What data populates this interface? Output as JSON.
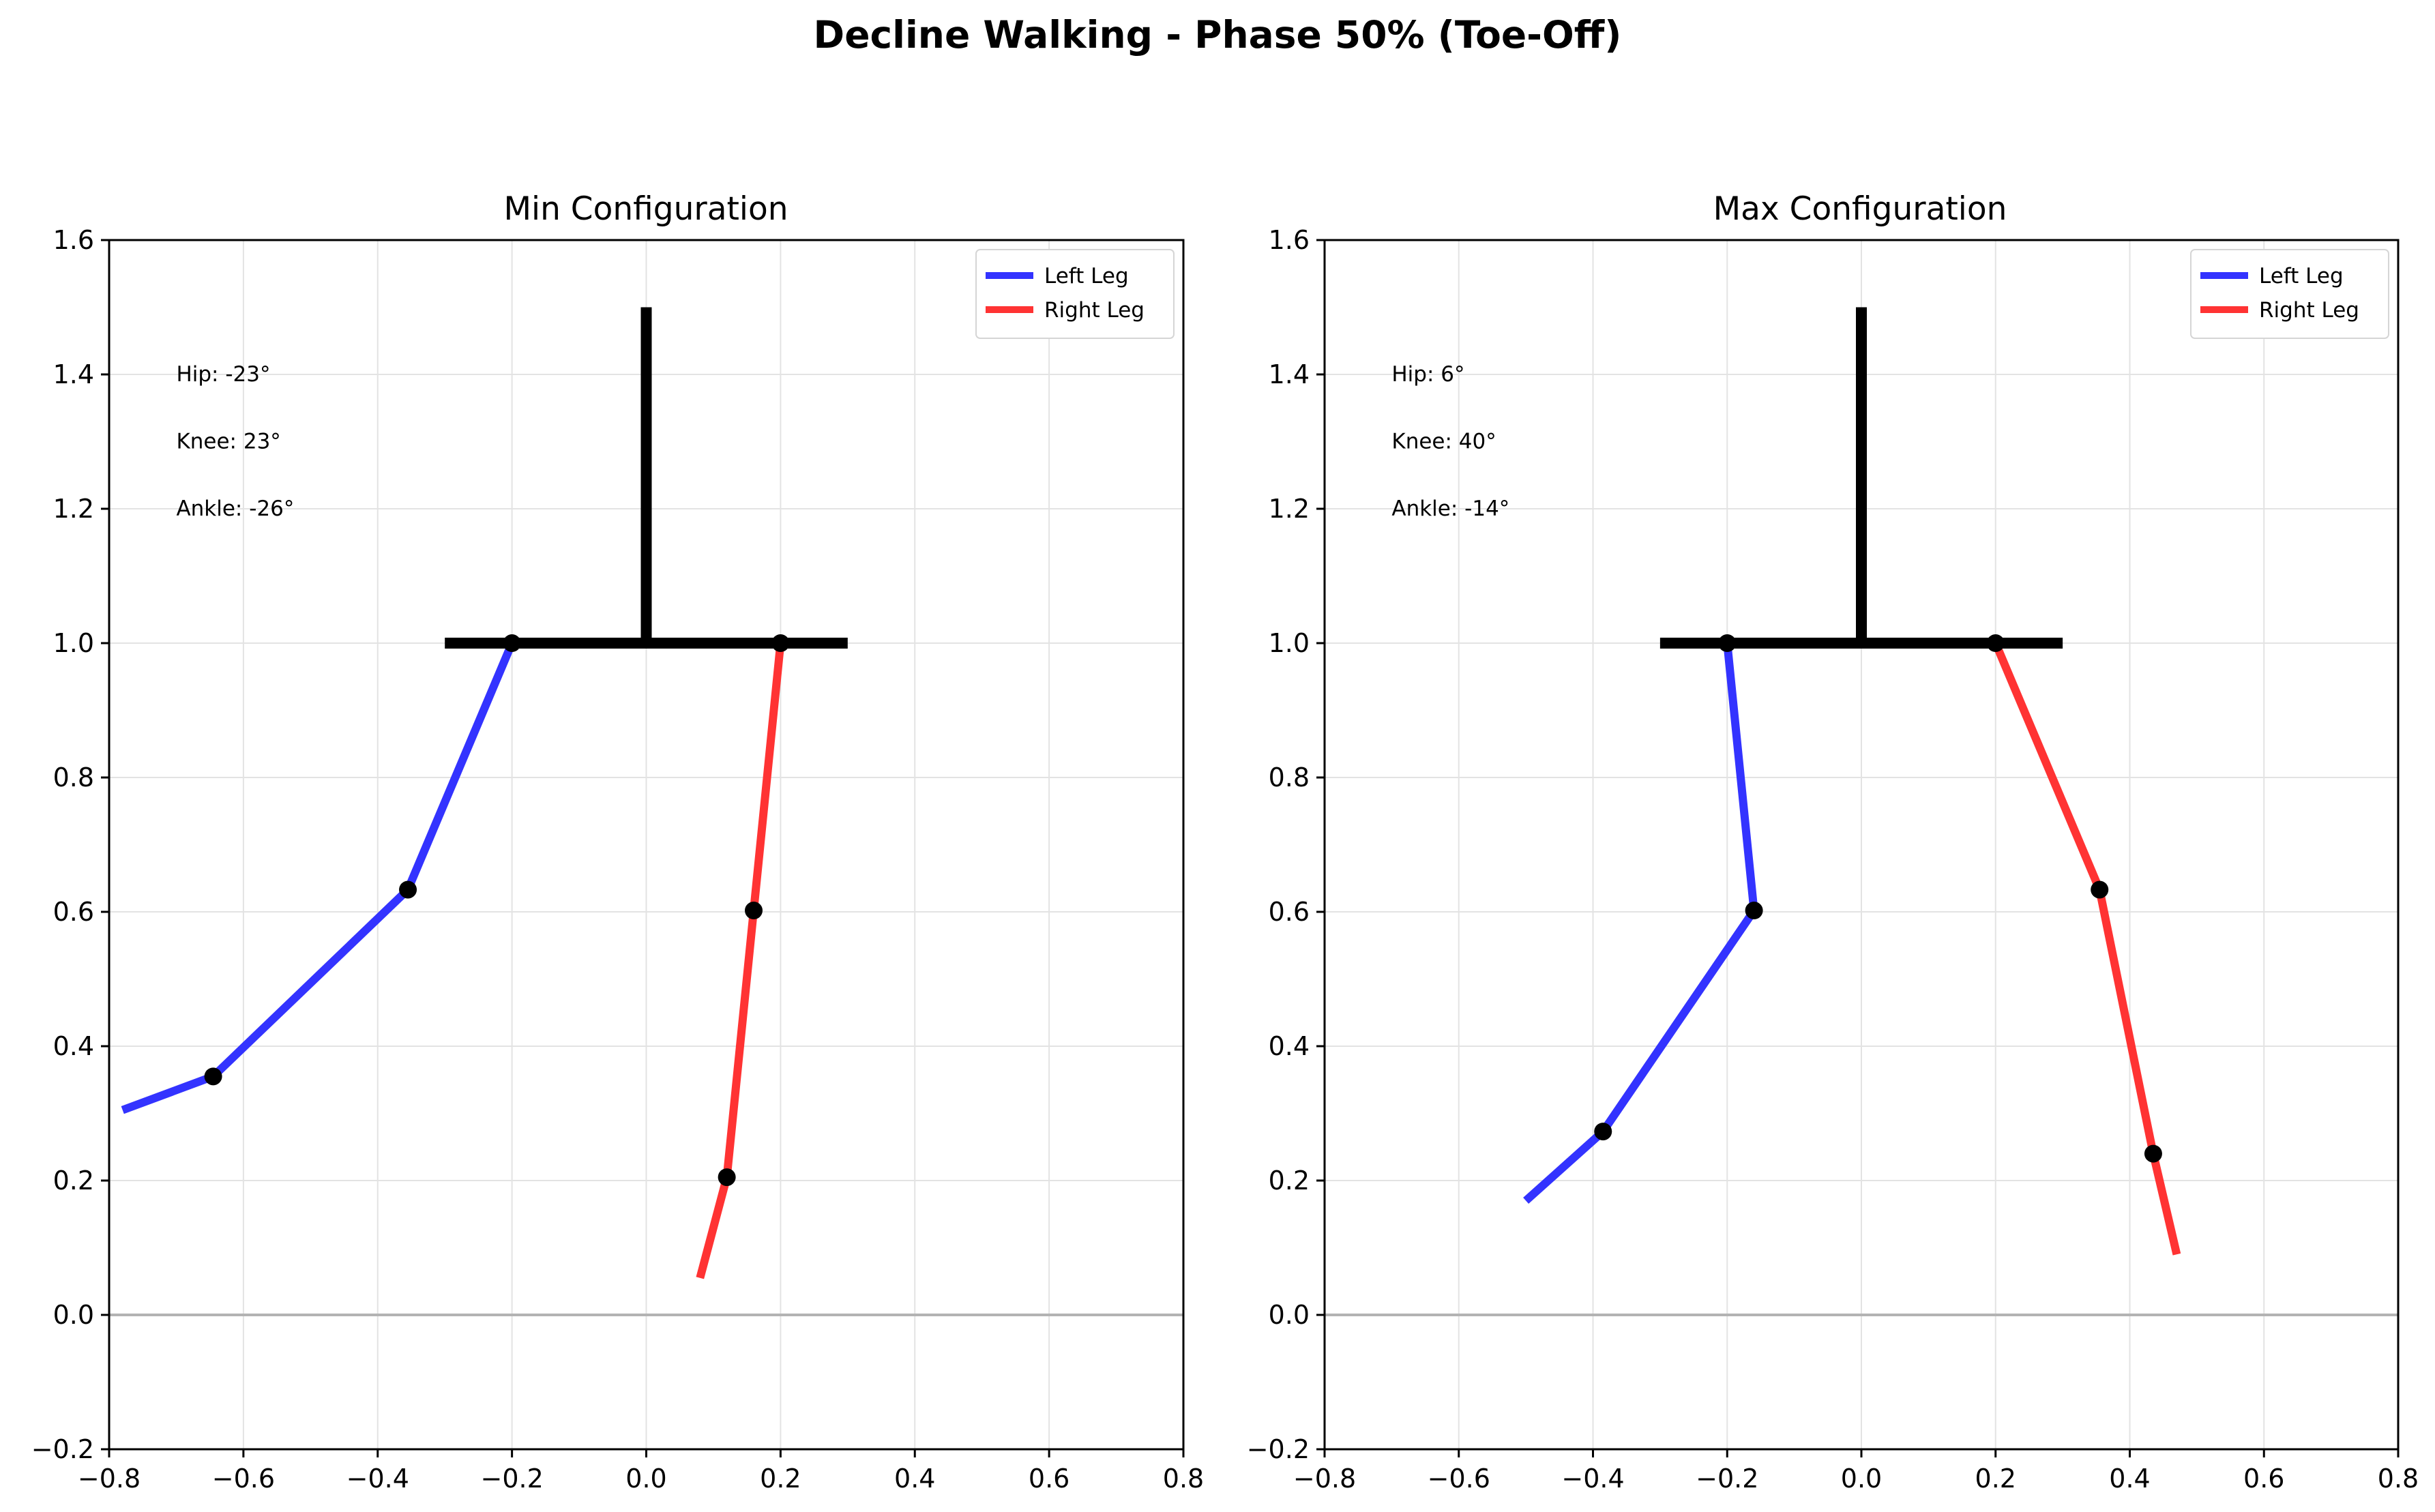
{
  "figure": {
    "title": "Decline Walking - Phase 50% (Toe-Off)"
  },
  "chart_data": [
    {
      "type": "line",
      "title": "Min Configuration",
      "xlim": [
        -0.8,
        0.8
      ],
      "ylim": [
        -0.2,
        1.6
      ],
      "xticks": [
        -0.8,
        -0.6,
        -0.4,
        -0.2,
        0.0,
        0.2,
        0.4,
        0.6,
        0.8
      ],
      "yticks": [
        -0.2,
        0.0,
        0.2,
        0.4,
        0.6,
        0.8,
        1.0,
        1.2,
        1.4,
        1.6
      ],
      "xtick_labels": [
        "−0.8",
        "−0.6",
        "−0.4",
        "−0.2",
        "0.0",
        "0.2",
        "0.4",
        "0.6",
        "0.8"
      ],
      "ytick_labels": [
        "−0.2",
        "0.0",
        "0.2",
        "0.4",
        "0.6",
        "0.8",
        "1.0",
        "1.2",
        "1.4",
        "1.6"
      ],
      "grid": true,
      "legend_position": "top-right",
      "ground_y": 0.0,
      "trunk": {
        "x": [
          0.0,
          0.0
        ],
        "y": [
          1.0,
          1.5
        ]
      },
      "pelvis": {
        "x": [
          -0.3,
          0.3
        ],
        "y": [
          1.0,
          1.0
        ]
      },
      "series": [
        {
          "name": "Left Leg",
          "color": "#3333ff",
          "x": [
            -0.2,
            -0.355,
            -0.645,
            -0.78
          ],
          "y": [
            1.0,
            0.633,
            0.355,
            0.305
          ]
        },
        {
          "name": "Right Leg",
          "color": "#ff3333",
          "x": [
            0.2,
            0.16,
            0.12,
            0.08
          ],
          "y": [
            1.0,
            0.602,
            0.205,
            0.055
          ]
        }
      ],
      "annotations": [
        "Hip: -23°",
        "Knee: 23°",
        "Ankle: -26°"
      ]
    },
    {
      "type": "line",
      "title": "Max Configuration",
      "xlim": [
        -0.8,
        0.8
      ],
      "ylim": [
        -0.2,
        1.6
      ],
      "xticks": [
        -0.8,
        -0.6,
        -0.4,
        -0.2,
        0.0,
        0.2,
        0.4,
        0.6,
        0.8
      ],
      "yticks": [
        -0.2,
        0.0,
        0.2,
        0.4,
        0.6,
        0.8,
        1.0,
        1.2,
        1.4,
        1.6
      ],
      "xtick_labels": [
        "−0.8",
        "−0.6",
        "−0.4",
        "−0.2",
        "0.0",
        "0.2",
        "0.4",
        "0.6",
        "0.8"
      ],
      "ytick_labels": [
        "−0.2",
        "0.0",
        "0.2",
        "0.4",
        "0.6",
        "0.8",
        "1.0",
        "1.2",
        "1.4",
        "1.6"
      ],
      "grid": true,
      "legend_position": "top-right",
      "ground_y": 0.0,
      "trunk": {
        "x": [
          0.0,
          0.0
        ],
        "y": [
          1.0,
          1.5
        ]
      },
      "pelvis": {
        "x": [
          -0.3,
          0.3
        ],
        "y": [
          1.0,
          1.0
        ]
      },
      "series": [
        {
          "name": "Left Leg",
          "color": "#3333ff",
          "x": [
            -0.2,
            -0.16,
            -0.385,
            -0.5
          ],
          "y": [
            1.0,
            0.602,
            0.273,
            0.17
          ]
        },
        {
          "name": "Right Leg",
          "color": "#ff3333",
          "x": [
            0.2,
            0.355,
            0.435,
            0.47
          ],
          "y": [
            1.0,
            0.633,
            0.24,
            0.09
          ]
        }
      ],
      "annotations": [
        "Hip: 6°",
        "Knee: 40°",
        "Ankle: -14°"
      ]
    }
  ]
}
